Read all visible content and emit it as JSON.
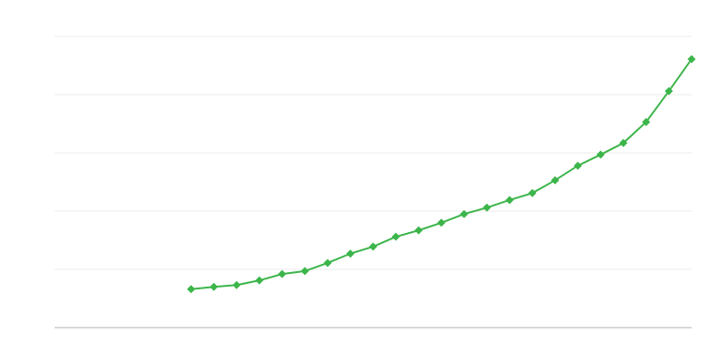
{
  "chart_data": {
    "type": "line",
    "title": "",
    "xlabel": "",
    "ylabel": "",
    "grid": true,
    "xlim": [
      0,
      28
    ],
    "ylim": [
      0,
      5
    ],
    "x": [
      6,
      7,
      8,
      9,
      10,
      11,
      12,
      13,
      14,
      15,
      16,
      17,
      18,
      19,
      20,
      21,
      22,
      23,
      24,
      25,
      26,
      27,
      28
    ],
    "series": [
      {
        "color": "#3cb54a",
        "marker": "diamond",
        "values": [
          0.66,
          0.7,
          0.73,
          0.81,
          0.92,
          0.97,
          1.11,
          1.27,
          1.39,
          1.56,
          1.67,
          1.8,
          1.95,
          2.06,
          2.19,
          2.31,
          2.53,
          2.78,
          2.97,
          3.17,
          3.53,
          4.06,
          4.61
        ]
      }
    ],
    "colors": {
      "grid": "#ebebeb",
      "axis": "#b0b0b0"
    }
  }
}
